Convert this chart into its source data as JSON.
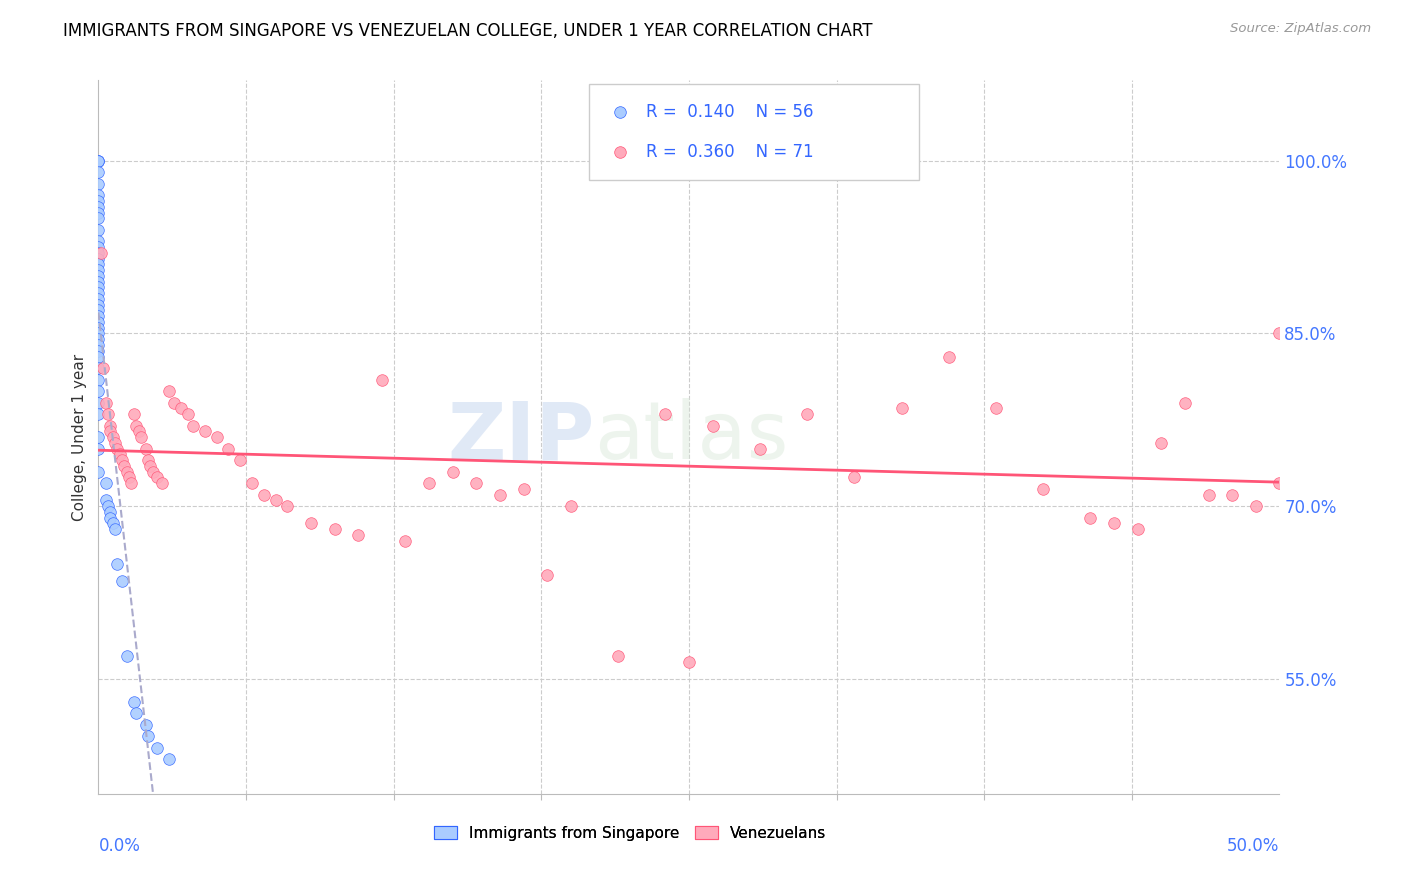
{
  "title": "IMMIGRANTS FROM SINGAPORE VS VENEZUELAN COLLEGE, UNDER 1 YEAR CORRELATION CHART",
  "source": "Source: ZipAtlas.com",
  "ylabel": "College, Under 1 year",
  "yticks": [
    55.0,
    70.0,
    85.0,
    100.0
  ],
  "ytick_labels": [
    "55.0%",
    "70.0%",
    "85.0%",
    "100.0%"
  ],
  "xmin": 0.0,
  "xmax": 50.0,
  "ymin": 45.0,
  "ymax": 107.0,
  "legend_r1": "R =  0.140",
  "legend_n1": "N = 56",
  "legend_r2": "R =  0.360",
  "legend_n2": "N = 71",
  "color_singapore": "#aaccff",
  "color_venezuela": "#ffaabb",
  "color_line_singapore": "#3366ff",
  "color_line_venezuela": "#ff5577",
  "watermark_zip": "ZIP",
  "watermark_atlas": "atlas",
  "singapore_x": [
    0.0,
    0.0,
    0.0,
    0.0,
    0.0,
    0.0,
    0.0,
    0.0,
    0.0,
    0.0,
    0.0,
    0.0,
    0.0,
    0.0,
    0.0,
    0.0,
    0.0,
    0.0,
    0.0,
    0.0,
    0.0,
    0.0,
    0.0,
    0.0,
    0.0,
    0.0,
    0.0,
    0.0,
    0.0,
    0.0,
    0.0,
    0.0,
    0.0,
    0.0,
    0.0,
    0.0,
    0.0,
    0.0,
    0.0,
    0.0,
    0.3,
    0.3,
    0.4,
    0.5,
    0.5,
    0.6,
    0.7,
    0.8,
    1.0,
    1.2,
    1.5,
    1.6,
    2.0,
    2.1,
    2.5,
    3.0
  ],
  "singapore_y": [
    100.0,
    100.0,
    100.0,
    99.0,
    98.0,
    97.0,
    96.5,
    96.0,
    95.5,
    95.0,
    94.0,
    93.0,
    92.5,
    92.0,
    91.5,
    91.0,
    90.5,
    90.0,
    89.5,
    89.0,
    88.5,
    88.0,
    87.5,
    87.0,
    86.5,
    86.0,
    85.5,
    85.0,
    84.5,
    84.0,
    83.5,
    83.0,
    82.0,
    81.0,
    80.0,
    79.0,
    78.0,
    76.0,
    75.0,
    73.0,
    72.0,
    70.5,
    70.0,
    69.5,
    69.0,
    68.5,
    68.0,
    65.0,
    63.5,
    57.0,
    53.0,
    52.0,
    51.0,
    50.0,
    49.0,
    48.0
  ],
  "venezuela_x": [
    0.1,
    0.2,
    0.3,
    0.4,
    0.5,
    0.5,
    0.6,
    0.7,
    0.8,
    0.9,
    1.0,
    1.1,
    1.2,
    1.3,
    1.4,
    1.5,
    1.6,
    1.7,
    1.8,
    2.0,
    2.1,
    2.2,
    2.3,
    2.5,
    2.7,
    3.0,
    3.2,
    3.5,
    3.8,
    4.0,
    4.5,
    5.0,
    5.5,
    6.0,
    6.5,
    7.0,
    7.5,
    8.0,
    9.0,
    10.0,
    11.0,
    12.0,
    13.0,
    14.0,
    15.0,
    16.0,
    17.0,
    18.0,
    19.0,
    20.0,
    22.0,
    24.0,
    25.0,
    26.0,
    28.0,
    30.0,
    32.0,
    34.0,
    36.0,
    38.0,
    40.0,
    42.0,
    43.0,
    44.0,
    45.0,
    46.0,
    47.0,
    48.0,
    49.0,
    50.0,
    50.0
  ],
  "venezuela_y": [
    92.0,
    82.0,
    79.0,
    78.0,
    77.0,
    76.5,
    76.0,
    75.5,
    75.0,
    74.5,
    74.0,
    73.5,
    73.0,
    72.5,
    72.0,
    78.0,
    77.0,
    76.5,
    76.0,
    75.0,
    74.0,
    73.5,
    73.0,
    72.5,
    72.0,
    80.0,
    79.0,
    78.5,
    78.0,
    77.0,
    76.5,
    76.0,
    75.0,
    74.0,
    72.0,
    71.0,
    70.5,
    70.0,
    68.5,
    68.0,
    67.5,
    81.0,
    67.0,
    72.0,
    73.0,
    72.0,
    71.0,
    71.5,
    64.0,
    70.0,
    57.0,
    78.0,
    56.5,
    77.0,
    75.0,
    78.0,
    72.5,
    78.5,
    83.0,
    78.5,
    71.5,
    69.0,
    68.5,
    68.0,
    75.5,
    79.0,
    71.0,
    71.0,
    70.0,
    72.0,
    85.0
  ]
}
